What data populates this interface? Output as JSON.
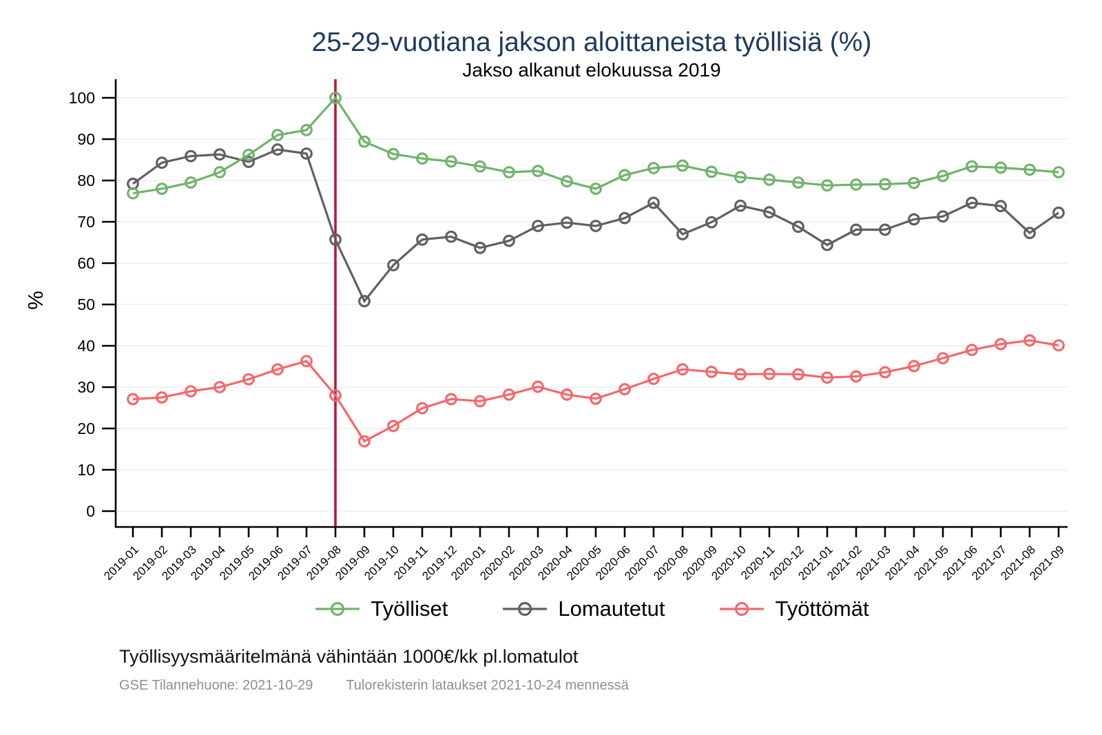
{
  "title": "25-29-vuotiana jakson aloittaneista työllisiä (%)",
  "subtitle": "Jakso alkanut elokuussa 2019",
  "ylabel": "%",
  "footnote": "Työllisyysmääritelmänä vähintään 1000€/kk pl.lomatulot",
  "sources": {
    "left": "GSE Tilannehuone: 2021-10-29",
    "right": "Tulorekisterin lataukset 2021-10-24 mennessä"
  },
  "colors": {
    "title": "#1f3a5f",
    "grid": "#eaeaea",
    "axis": "#000000",
    "tick_text": "#000000",
    "vline": "#c0143c",
    "muted_text": "#8f8f8f"
  },
  "chart_data": {
    "type": "line",
    "title": "25-29-vuotiana jakson aloittaneista työllisiä (%)",
    "subtitle": "Jakso alkanut elokuussa 2019",
    "xlabel": "",
    "ylabel": "%",
    "ylim": [
      0,
      100
    ],
    "yticks": [
      0,
      10,
      20,
      30,
      40,
      50,
      60,
      70,
      80,
      90,
      100
    ],
    "grid": "horizontal",
    "legend_position": "bottom",
    "vline": {
      "x": "2019-08",
      "color": "#c0143c"
    },
    "x": [
      "2019-01",
      "2019-02",
      "2019-03",
      "2019-04",
      "2019-05",
      "2019-06",
      "2019-07",
      "2019-08",
      "2019-09",
      "2019-10",
      "2019-11",
      "2019-12",
      "2020-01",
      "2020-02",
      "2020-03",
      "2020-04",
      "2020-05",
      "2020-06",
      "2020-07",
      "2020-08",
      "2020-09",
      "2020-10",
      "2020-11",
      "2020-12",
      "2021-01",
      "2021-02",
      "2021-03",
      "2021-04",
      "2021-05",
      "2021-06",
      "2021-07",
      "2021-08",
      "2021-09"
    ],
    "series": [
      {
        "name": "Työlliset",
        "color": "#70b36c",
        "values": [
          76.9,
          78.0,
          79.5,
          82.0,
          86.2,
          91.0,
          92.2,
          100.0,
          89.4,
          86.4,
          85.3,
          84.6,
          83.4,
          82.0,
          82.3,
          79.8,
          78.0,
          81.3,
          83.0,
          83.6,
          82.1,
          80.8,
          80.2,
          79.5,
          78.8,
          79.0,
          79.1,
          79.4,
          81.1,
          83.4,
          83.1,
          82.6,
          82.0
        ]
      },
      {
        "name": "Lomautetut",
        "color": "#606060",
        "values": [
          79.2,
          84.3,
          85.9,
          86.3,
          84.5,
          87.5,
          86.5,
          65.7,
          50.8,
          59.5,
          65.7,
          66.4,
          63.7,
          65.4,
          69.0,
          69.8,
          69.0,
          70.9,
          74.6,
          67.0,
          69.9,
          73.9,
          72.3,
          68.8,
          64.4,
          68.1,
          68.1,
          70.6,
          71.3,
          74.6,
          73.8,
          67.3,
          72.2
        ]
      },
      {
        "name": "Työttömät",
        "color": "#f4686c",
        "values": [
          27.1,
          27.5,
          29.0,
          30.0,
          31.9,
          34.3,
          36.3,
          28.0,
          16.9,
          20.6,
          24.9,
          27.1,
          26.6,
          28.2,
          30.1,
          28.2,
          27.2,
          29.5,
          32.0,
          34.3,
          33.7,
          33.1,
          33.2,
          33.1,
          32.3,
          32.6,
          33.6,
          35.1,
          37.0,
          39.0,
          40.4,
          41.3,
          40.1
        ]
      }
    ]
  }
}
